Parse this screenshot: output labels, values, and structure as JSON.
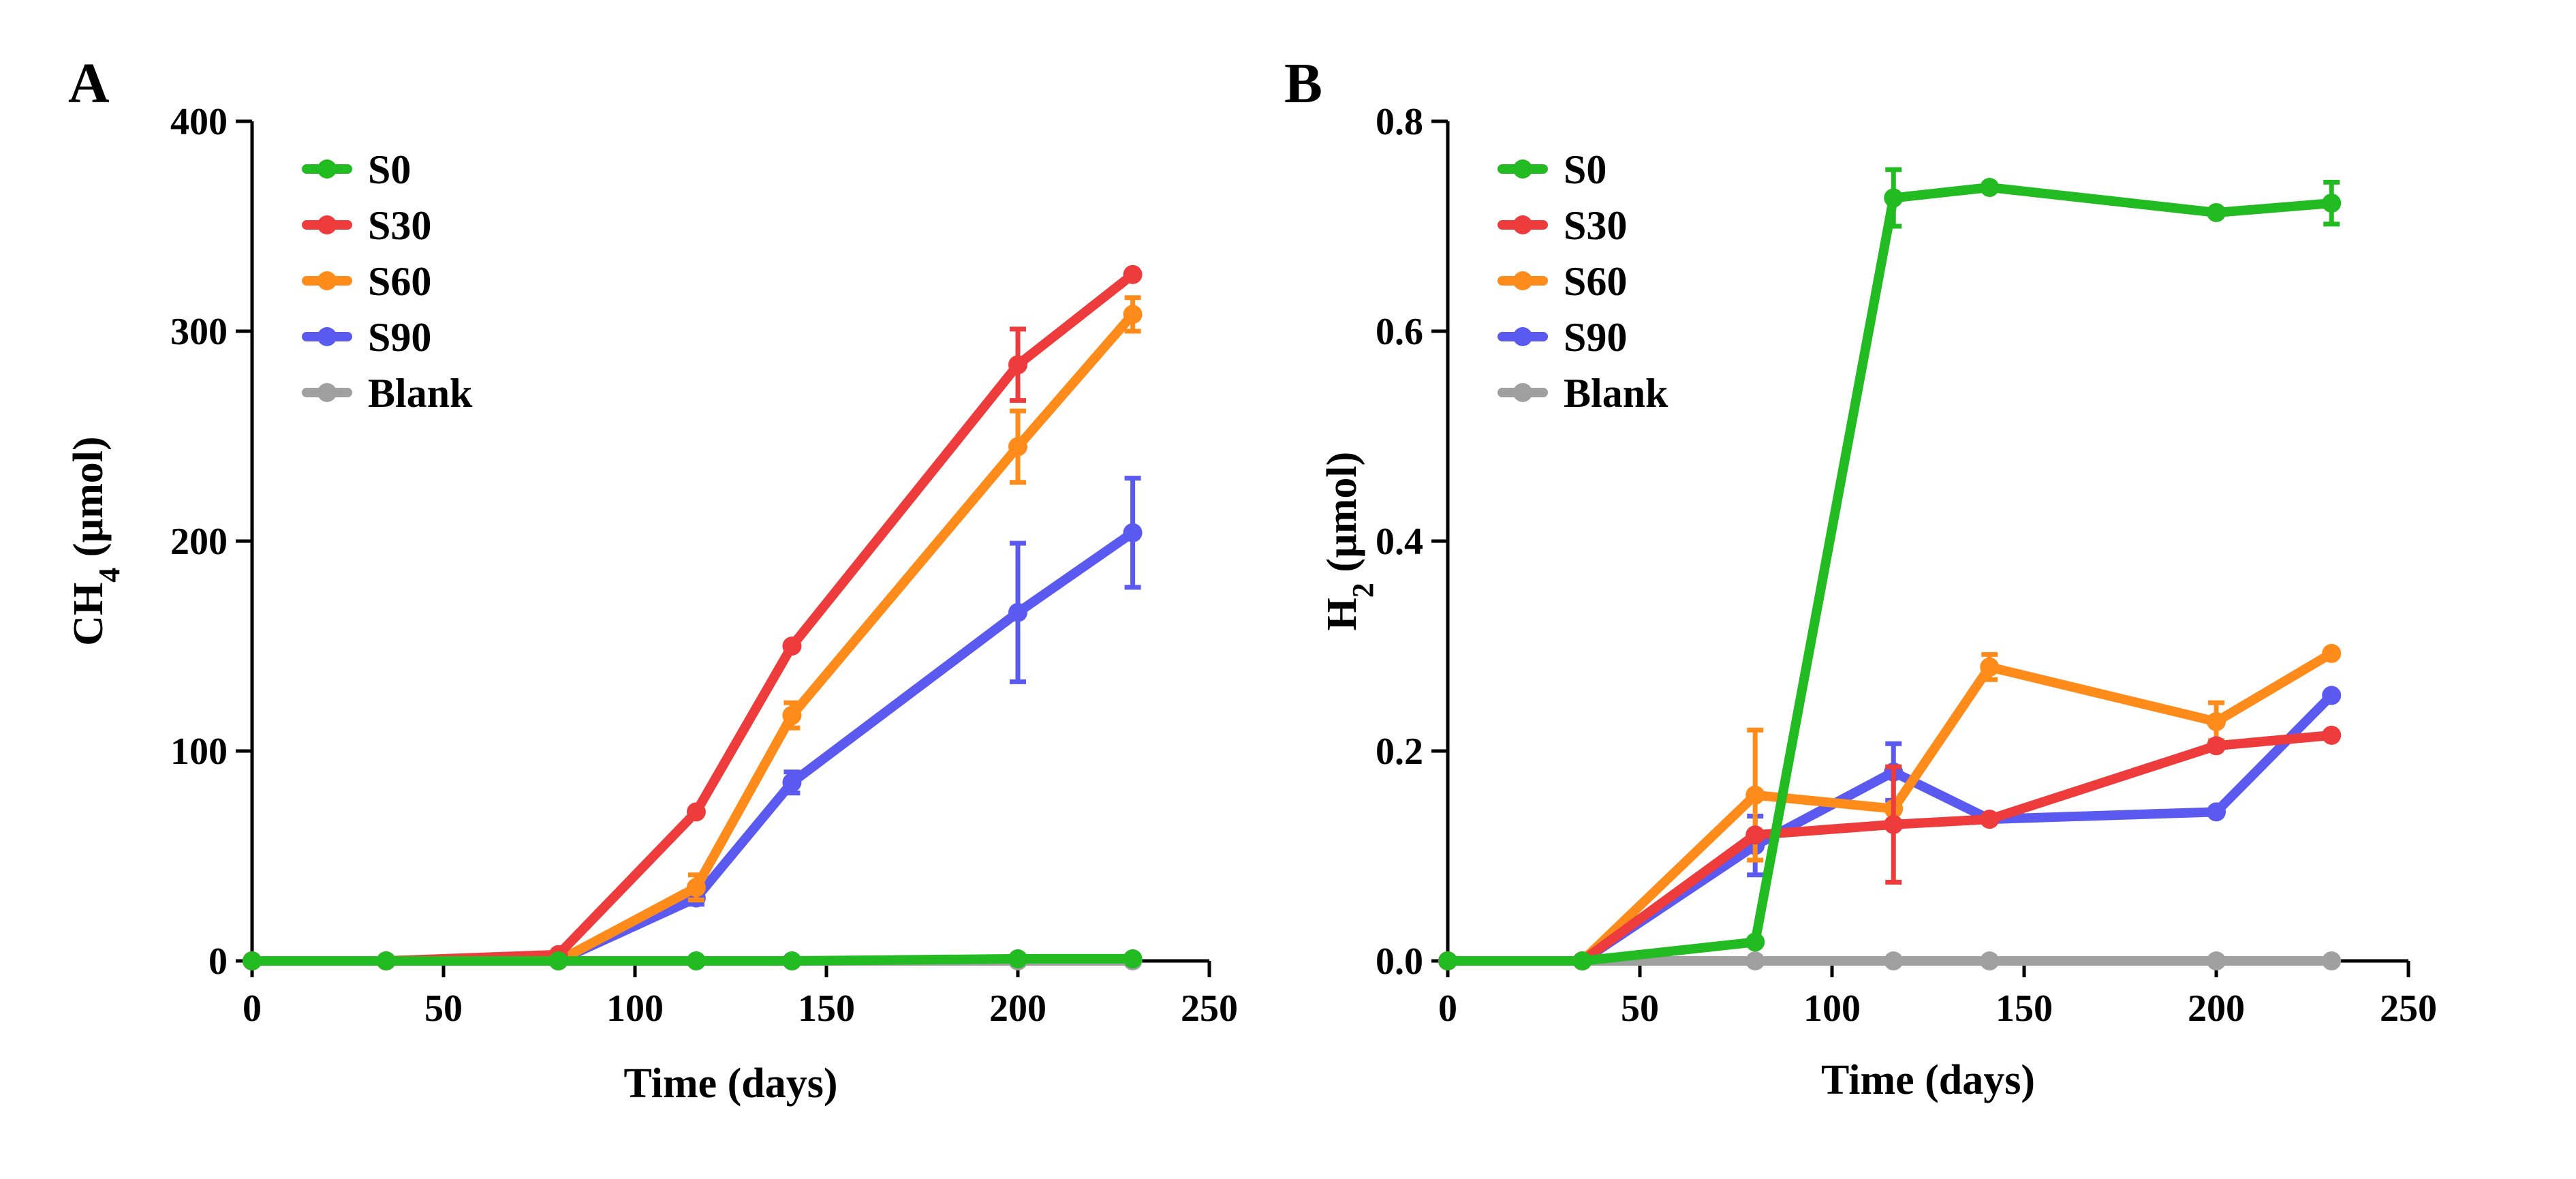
{
  "chart_data": [
    {
      "panel": "A",
      "type": "line",
      "xlabel": "Time (days)",
      "ylabel": "CH4 (µmol)",
      "ylabel_base": "CH",
      "ylabel_sub": "4",
      "ylabel_rest": " (µmol)",
      "xlim": [
        0,
        250
      ],
      "ylim": [
        0,
        400
      ],
      "xticks": [
        0,
        50,
        100,
        150,
        200,
        250
      ],
      "yticks": [
        0,
        100,
        200,
        300,
        400
      ],
      "ytick_labels": [
        "0",
        "100",
        "200",
        "300",
        "400"
      ],
      "x": [
        0,
        35,
        80,
        116,
        141,
        200,
        230
      ],
      "legend_position": "top-left",
      "series": [
        {
          "name": "S0",
          "color": "#22bb22",
          "values": [
            0,
            0,
            0,
            0,
            0,
            1,
            1
          ],
          "errors": [
            0,
            0,
            0,
            0,
            0,
            0,
            0
          ]
        },
        {
          "name": "S30",
          "color": "#ee3b3b",
          "values": [
            0,
            0,
            3,
            71,
            150,
            284,
            327
          ],
          "errors": [
            0,
            0,
            0,
            0,
            0,
            17,
            0
          ]
        },
        {
          "name": "S60",
          "color": "#ff8c1a",
          "values": [
            0,
            0,
            0,
            35,
            117,
            245,
            308
          ],
          "errors": [
            0,
            0,
            0,
            6,
            6,
            17,
            8
          ]
        },
        {
          "name": "S90",
          "color": "#5a5af0",
          "values": [
            0,
            0,
            0,
            30,
            85,
            166,
            204
          ],
          "errors": [
            0,
            0,
            0,
            3,
            5,
            33,
            26
          ]
        },
        {
          "name": "Blank",
          "color": "#a0a0a0",
          "values": [
            0,
            0,
            0,
            0,
            0,
            0,
            0
          ],
          "errors": [
            0,
            0,
            0,
            0,
            0,
            0,
            0
          ]
        }
      ]
    },
    {
      "panel": "B",
      "type": "line",
      "xlabel": "Time (days)",
      "ylabel": "H2 (µmol)",
      "ylabel_base": "H",
      "ylabel_sub": "2",
      "ylabel_rest": " (µmol)",
      "xlim": [
        0,
        250
      ],
      "ylim": [
        0,
        0.8
      ],
      "xticks": [
        0,
        50,
        100,
        150,
        200,
        250
      ],
      "yticks": [
        0,
        0.2,
        0.4,
        0.6,
        0.8
      ],
      "ytick_labels": [
        "0.0",
        "0.2",
        "0.4",
        "0.6",
        "0.8"
      ],
      "x": [
        0,
        35,
        80,
        116,
        141,
        200,
        230
      ],
      "legend_position": "top-left",
      "series": [
        {
          "name": "S0",
          "color": "#22bb22",
          "values": [
            0,
            0,
            0.018,
            0.727,
            0.737,
            0.713,
            0.722
          ],
          "errors": [
            0,
            0,
            0,
            0.027,
            0,
            0,
            0.02
          ]
        },
        {
          "name": "S30",
          "color": "#ee3b3b",
          "values": [
            0,
            0,
            0.12,
            0.13,
            0.135,
            0.205,
            0.215
          ],
          "errors": [
            0,
            0,
            0,
            0.055,
            0,
            0,
            0
          ]
        },
        {
          "name": "S60",
          "color": "#ff8c1a",
          "values": [
            0,
            0,
            0.158,
            0.145,
            0.28,
            0.228,
            0.293
          ],
          "errors": [
            0,
            0,
            0.062,
            0,
            0.012,
            0.018,
            0
          ]
        },
        {
          "name": "S90",
          "color": "#5a5af0",
          "values": [
            0,
            0,
            0.11,
            0.18,
            0.135,
            0.142,
            0.253
          ],
          "errors": [
            0,
            0,
            0.028,
            0.027,
            0,
            0,
            0
          ]
        },
        {
          "name": "Blank",
          "color": "#a0a0a0",
          "values": [
            0,
            0,
            0,
            0,
            0,
            0,
            0
          ],
          "errors": [
            0,
            0,
            0,
            0,
            0,
            0,
            0
          ]
        }
      ]
    }
  ]
}
